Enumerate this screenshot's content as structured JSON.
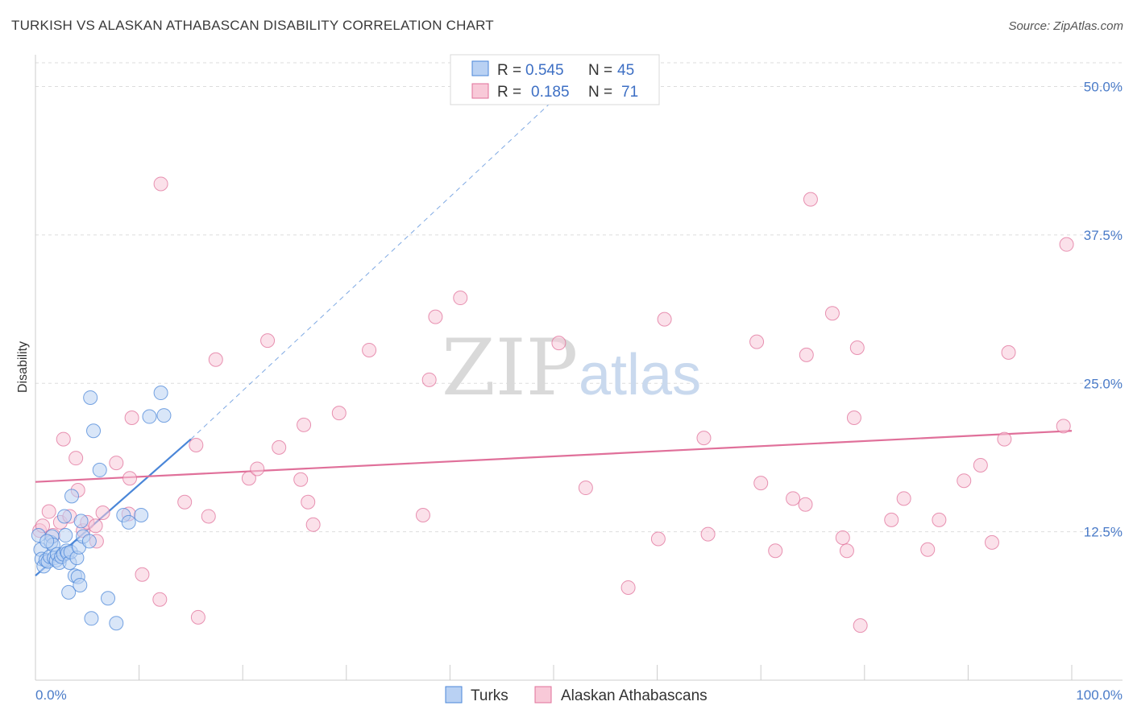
{
  "title": "TURKISH VS ALASKAN ATHABASCAN DISABILITY CORRELATION CHART",
  "source": "Source: ZipAtlas.com",
  "watermark": {
    "zip": "ZIP",
    "atlas": "atlas"
  },
  "colors": {
    "turks": "#4a86d8",
    "turks_fill": "#b9d1f3",
    "alaskan": "#e0709a",
    "alaskan_fill": "#f8c9d8",
    "tick_label": "#4a7bc8"
  },
  "chart_data": {
    "type": "scatter",
    "title": "TURKISH VS ALASKAN ATHABASCAN DISABILITY CORRELATION CHART",
    "xlabel": "",
    "ylabel": "Disability",
    "xlim": [
      0,
      100
    ],
    "ylim": [
      0,
      52
    ],
    "x_tick_labels": [
      "0.0%",
      "100.0%"
    ],
    "y_ticks": [
      12.5,
      25.0,
      37.5,
      50.0
    ],
    "y_tick_labels": [
      "12.5%",
      "25.0%",
      "37.5%",
      "50.0%"
    ],
    "grid": true,
    "legend": [
      {
        "label": "R = ",
        "r": "0.545",
        "n_label": "N = ",
        "n": "45"
      },
      {
        "label": "R = ",
        "r": "0.185",
        "n_label": "N = ",
        "n": "71"
      }
    ],
    "series": [
      {
        "name": "Turks",
        "r": 0.545,
        "n": 45,
        "trend": {
          "x0": 0,
          "y0": 8.8,
          "x1": 15,
          "y1": 20.3,
          "dash_to_x": 52,
          "dash_to_y": 50.5
        },
        "points": [
          [
            0.3,
            12.2
          ],
          [
            0.5,
            11.0
          ],
          [
            0.6,
            10.2
          ],
          [
            0.8,
            9.6
          ],
          [
            1.0,
            10.1
          ],
          [
            1.2,
            10.0
          ],
          [
            1.4,
            10.4
          ],
          [
            1.5,
            11.6
          ],
          [
            1.6,
            12.1
          ],
          [
            1.7,
            11.4
          ],
          [
            1.8,
            10.3
          ],
          [
            2.0,
            10.1
          ],
          [
            2.1,
            10.6
          ],
          [
            2.3,
            9.9
          ],
          [
            2.5,
            10.4
          ],
          [
            2.7,
            10.6
          ],
          [
            2.8,
            13.8
          ],
          [
            2.9,
            12.2
          ],
          [
            3.0,
            10.9
          ],
          [
            3.1,
            10.7
          ],
          [
            3.3,
            9.9
          ],
          [
            3.4,
            10.8
          ],
          [
            3.2,
            7.4
          ],
          [
            3.5,
            15.5
          ],
          [
            3.8,
            8.8
          ],
          [
            4.0,
            10.3
          ],
          [
            4.1,
            8.7
          ],
          [
            4.2,
            11.2
          ],
          [
            4.3,
            8.0
          ],
          [
            4.4,
            13.4
          ],
          [
            4.6,
            12.1
          ],
          [
            5.2,
            11.7
          ],
          [
            5.3,
            23.8
          ],
          [
            5.6,
            21.0
          ],
          [
            6.2,
            17.7
          ],
          [
            7.0,
            6.9
          ],
          [
            5.4,
            5.2
          ],
          [
            7.8,
            4.8
          ],
          [
            8.5,
            13.9
          ],
          [
            9.0,
            13.3
          ],
          [
            10.2,
            13.9
          ],
          [
            11.0,
            22.2
          ],
          [
            12.1,
            24.2
          ],
          [
            12.4,
            22.3
          ],
          [
            1.1,
            11.7
          ]
        ]
      },
      {
        "name": "Alaskan Athabascans",
        "r": 0.185,
        "n": 71,
        "trend": {
          "x0": 0,
          "y0": 16.7,
          "x1": 100,
          "y1": 21.0
        },
        "points": [
          [
            0.4,
            12.6
          ],
          [
            0.7,
            13.0
          ],
          [
            1.3,
            14.2
          ],
          [
            1.7,
            12.2
          ],
          [
            2.4,
            13.3
          ],
          [
            2.7,
            20.3
          ],
          [
            3.3,
            13.8
          ],
          [
            3.9,
            18.7
          ],
          [
            4.1,
            16.0
          ],
          [
            4.6,
            12.6
          ],
          [
            5.0,
            13.3
          ],
          [
            5.8,
            13.0
          ],
          [
            5.9,
            11.7
          ],
          [
            6.5,
            14.1
          ],
          [
            7.8,
            18.3
          ],
          [
            9.0,
            14.0
          ],
          [
            9.1,
            17.0
          ],
          [
            9.3,
            22.1
          ],
          [
            10.3,
            8.9
          ],
          [
            12.0,
            6.8
          ],
          [
            12.1,
            41.8
          ],
          [
            14.4,
            15.0
          ],
          [
            15.5,
            19.8
          ],
          [
            15.7,
            5.3
          ],
          [
            16.7,
            13.8
          ],
          [
            17.4,
            27.0
          ],
          [
            20.6,
            17.0
          ],
          [
            21.4,
            17.8
          ],
          [
            22.4,
            28.6
          ],
          [
            23.5,
            19.6
          ],
          [
            25.6,
            16.9
          ],
          [
            25.9,
            21.5
          ],
          [
            26.3,
            15.0
          ],
          [
            26.8,
            13.1
          ],
          [
            29.3,
            22.5
          ],
          [
            32.2,
            27.8
          ],
          [
            37.4,
            13.9
          ],
          [
            38.0,
            25.3
          ],
          [
            38.6,
            30.6
          ],
          [
            41.0,
            32.2
          ],
          [
            50.5,
            28.4
          ],
          [
            53.1,
            16.2
          ],
          [
            57.2,
            7.8
          ],
          [
            60.1,
            11.9
          ],
          [
            60.7,
            30.4
          ],
          [
            64.5,
            20.4
          ],
          [
            64.9,
            12.3
          ],
          [
            69.6,
            28.5
          ],
          [
            70.0,
            16.6
          ],
          [
            71.4,
            10.9
          ],
          [
            73.1,
            15.3
          ],
          [
            74.3,
            14.8
          ],
          [
            74.4,
            27.4
          ],
          [
            74.8,
            40.5
          ],
          [
            76.9,
            30.9
          ],
          [
            77.9,
            12.0
          ],
          [
            78.3,
            10.9
          ],
          [
            79.0,
            22.1
          ],
          [
            79.3,
            28.0
          ],
          [
            79.6,
            4.6
          ],
          [
            82.6,
            13.5
          ],
          [
            83.8,
            15.3
          ],
          [
            86.1,
            11.0
          ],
          [
            87.2,
            13.5
          ],
          [
            89.6,
            16.8
          ],
          [
            91.2,
            18.1
          ],
          [
            92.3,
            11.6
          ],
          [
            93.5,
            20.3
          ],
          [
            93.9,
            27.6
          ],
          [
            99.2,
            21.4
          ],
          [
            99.5,
            36.7
          ]
        ]
      }
    ]
  },
  "bottom_legend": [
    {
      "label": "Turks"
    },
    {
      "label": "Alaskan Athabascans"
    }
  ]
}
